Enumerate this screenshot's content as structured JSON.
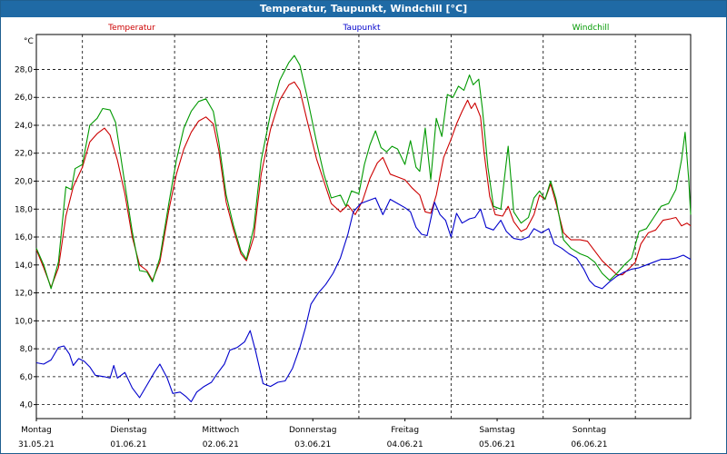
{
  "window": {
    "title": "Temperatur, Taupunkt, Windchill [°C]"
  },
  "chart_data": {
    "type": "line",
    "title": "Temperatur, Taupunkt, Windchill [°C]",
    "y_unit": "°C",
    "ylim": [
      3,
      30.5
    ],
    "y_ticks": [
      4,
      6,
      8,
      10,
      12,
      14,
      16,
      18,
      20,
      22,
      24,
      26,
      28
    ],
    "y_tick_labels": [
      "4,0",
      "6,0",
      "8,0",
      "10,0",
      "12,0",
      "14,0",
      "16,0",
      "18,0",
      "20,0",
      "22,0",
      "24,0",
      "26,0",
      "28,0"
    ],
    "grid": true,
    "x_unit": "day index from first label (Montag 31.05.21)",
    "xlim": [
      0,
      7.1
    ],
    "x_ticks": [
      {
        "day": "Montag",
        "date": "31.05.21"
      },
      {
        "day": "Dienstag",
        "date": "01.06.21"
      },
      {
        "day": "Mittwoch",
        "date": "02.06.21"
      },
      {
        "day": "Donnerstag",
        "date": "03.06.21"
      },
      {
        "day": "Freitag",
        "date": "04.06.21"
      },
      {
        "day": "Samstag",
        "date": "05.06.21"
      },
      {
        "day": "Sonntag",
        "date": "06.06.21"
      }
    ],
    "legend_position": "top",
    "series": [
      {
        "name": "Temperatur",
        "color": "#cc0000",
        "points": [
          [
            0,
            15.1
          ],
          [
            0.08,
            13.8
          ],
          [
            0.16,
            12.4
          ],
          [
            0.24,
            13.8
          ],
          [
            0.32,
            17.5
          ],
          [
            0.4,
            19.6
          ],
          [
            0.5,
            21.0
          ],
          [
            0.58,
            22.8
          ],
          [
            0.66,
            23.4
          ],
          [
            0.74,
            23.8
          ],
          [
            0.8,
            23.3
          ],
          [
            0.88,
            21.5
          ],
          [
            0.96,
            19.1
          ],
          [
            1.04,
            16.0
          ],
          [
            1.12,
            14.0
          ],
          [
            1.2,
            13.6
          ],
          [
            1.26,
            12.9
          ],
          [
            1.34,
            14.2
          ],
          [
            1.44,
            18.0
          ],
          [
            1.52,
            20.5
          ],
          [
            1.6,
            22.3
          ],
          [
            1.68,
            23.5
          ],
          [
            1.76,
            24.3
          ],
          [
            1.84,
            24.6
          ],
          [
            1.92,
            24.1
          ],
          [
            1.98,
            22.2
          ],
          [
            2.06,
            18.5
          ],
          [
            2.14,
            16.5
          ],
          [
            2.22,
            14.8
          ],
          [
            2.28,
            14.3
          ],
          [
            2.36,
            16.0
          ],
          [
            2.44,
            20.5
          ],
          [
            2.54,
            23.7
          ],
          [
            2.64,
            25.8
          ],
          [
            2.74,
            26.9
          ],
          [
            2.8,
            27.1
          ],
          [
            2.86,
            26.5
          ],
          [
            2.94,
            24.3
          ],
          [
            3.04,
            21.6
          ],
          [
            3.12,
            20.0
          ],
          [
            3.2,
            18.4
          ],
          [
            3.3,
            17.8
          ],
          [
            3.38,
            18.3
          ],
          [
            3.46,
            17.6
          ],
          [
            3.54,
            18.6
          ],
          [
            3.62,
            20.2
          ],
          [
            3.7,
            21.3
          ],
          [
            3.76,
            21.7
          ],
          [
            3.84,
            20.5
          ],
          [
            3.92,
            20.3
          ],
          [
            4.0,
            20.1
          ],
          [
            4.08,
            19.5
          ],
          [
            4.16,
            19.0
          ],
          [
            4.22,
            17.8
          ],
          [
            4.28,
            17.7
          ],
          [
            4.34,
            19.0
          ],
          [
            4.42,
            21.7
          ],
          [
            4.5,
            23.0
          ],
          [
            4.56,
            24.1
          ],
          [
            4.62,
            25.0
          ],
          [
            4.68,
            25.8
          ],
          [
            4.72,
            25.2
          ],
          [
            4.76,
            25.6
          ],
          [
            4.82,
            24.6
          ],
          [
            4.86,
            22.0
          ],
          [
            4.92,
            18.9
          ],
          [
            4.98,
            17.6
          ],
          [
            5.06,
            17.5
          ],
          [
            5.12,
            18.2
          ],
          [
            5.18,
            17.1
          ],
          [
            5.26,
            16.4
          ],
          [
            5.32,
            16.6
          ],
          [
            5.4,
            17.6
          ],
          [
            5.46,
            19.0
          ],
          [
            5.52,
            18.7
          ],
          [
            5.58,
            19.8
          ],
          [
            5.64,
            18.4
          ],
          [
            5.72,
            16.3
          ],
          [
            5.8,
            15.8
          ],
          [
            5.9,
            15.8
          ],
          [
            5.98,
            15.7
          ],
          [
            6.06,
            15.0
          ],
          [
            6.14,
            14.3
          ],
          [
            6.22,
            13.8
          ],
          [
            6.3,
            13.3
          ],
          [
            6.36,
            13.3
          ],
          [
            6.44,
            13.8
          ],
          [
            6.5,
            14.2
          ],
          [
            6.56,
            15.5
          ],
          [
            6.64,
            16.3
          ],
          [
            6.72,
            16.5
          ],
          [
            6.8,
            17.2
          ],
          [
            6.88,
            17.3
          ],
          [
            6.94,
            17.4
          ],
          [
            7.0,
            16.8
          ],
          [
            7.06,
            17.0
          ],
          [
            7.1,
            16.8
          ]
        ]
      },
      {
        "name": "Taupunkt",
        "color": "#0000cc",
        "points": [
          [
            0,
            7.0
          ],
          [
            0.08,
            6.9
          ],
          [
            0.16,
            7.2
          ],
          [
            0.24,
            8.1
          ],
          [
            0.3,
            8.2
          ],
          [
            0.36,
            7.6
          ],
          [
            0.4,
            6.8
          ],
          [
            0.46,
            7.3
          ],
          [
            0.52,
            7.1
          ],
          [
            0.58,
            6.7
          ],
          [
            0.64,
            6.1
          ],
          [
            0.74,
            6.0
          ],
          [
            0.8,
            5.9
          ],
          [
            0.84,
            6.8
          ],
          [
            0.88,
            5.9
          ],
          [
            0.96,
            6.3
          ],
          [
            1.04,
            5.2
          ],
          [
            1.12,
            4.5
          ],
          [
            1.2,
            5.4
          ],
          [
            1.28,
            6.3
          ],
          [
            1.34,
            6.9
          ],
          [
            1.42,
            5.9
          ],
          [
            1.48,
            4.8
          ],
          [
            1.56,
            4.9
          ],
          [
            1.62,
            4.6
          ],
          [
            1.68,
            4.2
          ],
          [
            1.74,
            4.9
          ],
          [
            1.82,
            5.3
          ],
          [
            1.9,
            5.6
          ],
          [
            1.96,
            6.2
          ],
          [
            2.04,
            6.9
          ],
          [
            2.1,
            7.9
          ],
          [
            2.18,
            8.1
          ],
          [
            2.26,
            8.5
          ],
          [
            2.32,
            9.3
          ],
          [
            2.38,
            7.8
          ],
          [
            2.46,
            5.5
          ],
          [
            2.54,
            5.3
          ],
          [
            2.62,
            5.6
          ],
          [
            2.7,
            5.7
          ],
          [
            2.78,
            6.6
          ],
          [
            2.86,
            8.1
          ],
          [
            2.92,
            9.5
          ],
          [
            2.98,
            11.2
          ],
          [
            3.06,
            12.0
          ],
          [
            3.14,
            12.6
          ],
          [
            3.22,
            13.4
          ],
          [
            3.3,
            14.5
          ],
          [
            3.38,
            16.2
          ],
          [
            3.44,
            17.8
          ],
          [
            3.52,
            18.4
          ],
          [
            3.6,
            18.6
          ],
          [
            3.68,
            18.8
          ],
          [
            3.76,
            17.6
          ],
          [
            3.84,
            18.7
          ],
          [
            3.92,
            18.4
          ],
          [
            4.0,
            18.1
          ],
          [
            4.06,
            17.8
          ],
          [
            4.12,
            16.7
          ],
          [
            4.18,
            16.2
          ],
          [
            4.24,
            16.1
          ],
          [
            4.32,
            18.5
          ],
          [
            4.38,
            17.6
          ],
          [
            4.44,
            17.2
          ],
          [
            4.5,
            16.0
          ],
          [
            4.56,
            17.7
          ],
          [
            4.62,
            17.0
          ],
          [
            4.7,
            17.3
          ],
          [
            4.76,
            17.4
          ],
          [
            4.82,
            18.0
          ],
          [
            4.88,
            16.7
          ],
          [
            4.96,
            16.5
          ],
          [
            5.04,
            17.2
          ],
          [
            5.1,
            16.4
          ],
          [
            5.18,
            15.9
          ],
          [
            5.26,
            15.8
          ],
          [
            5.34,
            16.0
          ],
          [
            5.4,
            16.6
          ],
          [
            5.48,
            16.3
          ],
          [
            5.56,
            16.6
          ],
          [
            5.62,
            15.5
          ],
          [
            5.7,
            15.2
          ],
          [
            5.78,
            14.8
          ],
          [
            5.86,
            14.5
          ],
          [
            5.94,
            13.7
          ],
          [
            6.0,
            12.9
          ],
          [
            6.06,
            12.5
          ],
          [
            6.14,
            12.3
          ],
          [
            6.22,
            12.8
          ],
          [
            6.3,
            13.2
          ],
          [
            6.38,
            13.5
          ],
          [
            6.46,
            13.7
          ],
          [
            6.54,
            13.8
          ],
          [
            6.62,
            14.0
          ],
          [
            6.7,
            14.2
          ],
          [
            6.78,
            14.4
          ],
          [
            6.86,
            14.4
          ],
          [
            6.94,
            14.5
          ],
          [
            7.02,
            14.7
          ],
          [
            7.1,
            14.4
          ]
        ]
      },
      {
        "name": "Windchill",
        "color": "#009900",
        "points": [
          [
            0,
            15.2
          ],
          [
            0.08,
            14.0
          ],
          [
            0.16,
            12.3
          ],
          [
            0.24,
            14.2
          ],
          [
            0.32,
            19.6
          ],
          [
            0.38,
            19.4
          ],
          [
            0.42,
            20.9
          ],
          [
            0.5,
            21.2
          ],
          [
            0.58,
            24.0
          ],
          [
            0.66,
            24.5
          ],
          [
            0.72,
            25.2
          ],
          [
            0.8,
            25.1
          ],
          [
            0.86,
            24.2
          ],
          [
            0.96,
            19.8
          ],
          [
            1.04,
            16.4
          ],
          [
            1.12,
            13.6
          ],
          [
            1.2,
            13.5
          ],
          [
            1.26,
            12.8
          ],
          [
            1.34,
            14.5
          ],
          [
            1.44,
            18.5
          ],
          [
            1.52,
            21.5
          ],
          [
            1.6,
            23.8
          ],
          [
            1.68,
            25.0
          ],
          [
            1.76,
            25.7
          ],
          [
            1.84,
            25.9
          ],
          [
            1.92,
            25.0
          ],
          [
            1.98,
            22.8
          ],
          [
            2.06,
            19.0
          ],
          [
            2.14,
            16.8
          ],
          [
            2.22,
            15.0
          ],
          [
            2.28,
            14.4
          ],
          [
            2.36,
            16.7
          ],
          [
            2.44,
            21.5
          ],
          [
            2.54,
            24.8
          ],
          [
            2.64,
            27.2
          ],
          [
            2.74,
            28.5
          ],
          [
            2.8,
            29.0
          ],
          [
            2.86,
            28.3
          ],
          [
            2.94,
            26.0
          ],
          [
            3.04,
            22.8
          ],
          [
            3.12,
            20.5
          ],
          [
            3.2,
            18.8
          ],
          [
            3.3,
            19.0
          ],
          [
            3.36,
            18.2
          ],
          [
            3.42,
            19.3
          ],
          [
            3.5,
            19.1
          ],
          [
            3.56,
            21.2
          ],
          [
            3.62,
            22.6
          ],
          [
            3.68,
            23.6
          ],
          [
            3.74,
            22.4
          ],
          [
            3.8,
            22.1
          ],
          [
            3.86,
            22.5
          ],
          [
            3.92,
            22.3
          ],
          [
            4.0,
            21.2
          ],
          [
            4.06,
            22.9
          ],
          [
            4.12,
            21.0
          ],
          [
            4.16,
            20.7
          ],
          [
            4.22,
            23.8
          ],
          [
            4.28,
            20.1
          ],
          [
            4.34,
            24.5
          ],
          [
            4.4,
            23.2
          ],
          [
            4.46,
            26.2
          ],
          [
            4.52,
            26.0
          ],
          [
            4.58,
            26.8
          ],
          [
            4.64,
            26.5
          ],
          [
            4.7,
            27.6
          ],
          [
            4.74,
            26.9
          ],
          [
            4.8,
            27.3
          ],
          [
            4.84,
            25.2
          ],
          [
            4.9,
            21.0
          ],
          [
            4.96,
            18.2
          ],
          [
            5.04,
            18.0
          ],
          [
            5.12,
            22.5
          ],
          [
            5.18,
            17.8
          ],
          [
            5.26,
            17.0
          ],
          [
            5.34,
            17.4
          ],
          [
            5.4,
            18.8
          ],
          [
            5.46,
            19.3
          ],
          [
            5.52,
            18.7
          ],
          [
            5.58,
            20.0
          ],
          [
            5.64,
            18.7
          ],
          [
            5.72,
            15.8
          ],
          [
            5.8,
            15.2
          ],
          [
            5.9,
            14.8
          ],
          [
            5.98,
            14.6
          ],
          [
            6.06,
            14.2
          ],
          [
            6.14,
            13.4
          ],
          [
            6.22,
            12.9
          ],
          [
            6.3,
            13.4
          ],
          [
            6.38,
            14.0
          ],
          [
            6.46,
            14.5
          ],
          [
            6.54,
            16.4
          ],
          [
            6.62,
            16.6
          ],
          [
            6.7,
            17.4
          ],
          [
            6.78,
            18.2
          ],
          [
            6.86,
            18.4
          ],
          [
            6.94,
            19.4
          ],
          [
            7.0,
            21.5
          ],
          [
            7.04,
            23.5
          ],
          [
            7.08,
            20.0
          ],
          [
            7.1,
            17.6
          ]
        ]
      }
    ]
  }
}
